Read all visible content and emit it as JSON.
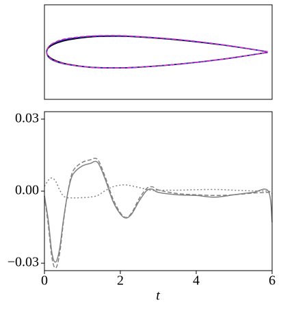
{
  "chart_data": [
    {
      "type": "outline",
      "xlim": [
        -0.01,
        1.02
      ],
      "ylim": [
        -0.3,
        0.3
      ],
      "series": [
        {
          "color": "#000000",
          "style": "solid",
          "x": [
            1,
            0.8,
            0.6,
            0.4,
            0.3,
            0.2,
            0.1,
            0.05,
            0.0125,
            0,
            0.0125,
            0.05,
            0.1,
            0.2,
            0.3,
            0.4,
            0.6,
            0.8,
            1
          ],
          "y": [
            0.002,
            0.044,
            0.076,
            0.097,
            0.1,
            0.096,
            0.078,
            0.059,
            0.032,
            0,
            -0.032,
            -0.059,
            -0.078,
            -0.096,
            -0.1,
            -0.097,
            -0.076,
            -0.044,
            -0.002
          ]
        },
        {
          "color": "#1f1fd6",
          "style": "solid",
          "x": [
            1,
            0.8,
            0.6,
            0.4,
            0.3,
            0.2,
            0.1,
            0.05,
            0.0125,
            0,
            0.0125,
            0.05,
            0.1,
            0.2,
            0.3,
            0.4,
            0.6,
            0.8,
            1
          ],
          "y": [
            0.002,
            0.045,
            0.078,
            0.099,
            0.103,
            0.1,
            0.084,
            0.066,
            0.038,
            0,
            -0.038,
            -0.064,
            -0.08,
            -0.097,
            -0.101,
            -0.098,
            -0.077,
            -0.045,
            -0.002
          ]
        },
        {
          "color": "#d62fb0",
          "style": "dashed",
          "x": [
            1,
            0.8,
            0.6,
            0.4,
            0.3,
            0.2,
            0.1,
            0.05,
            0.0125,
            0,
            0.0125,
            0.05,
            0.1,
            0.2,
            0.3,
            0.4,
            0.6,
            0.8,
            1
          ],
          "y": [
            0.002,
            0.046,
            0.079,
            0.1,
            0.105,
            0.102,
            0.088,
            0.07,
            0.04,
            0,
            -0.036,
            -0.062,
            -0.079,
            -0.097,
            -0.1,
            -0.097,
            -0.076,
            -0.044,
            -0.002
          ]
        }
      ]
    },
    {
      "type": "line",
      "xlabel": "t",
      "xlim": [
        0,
        6
      ],
      "ylim": [
        -0.0331,
        0.0331
      ],
      "xticks": [
        0,
        2,
        4,
        6
      ],
      "yticks": [
        {
          "value": 0.03,
          "label": "0.03"
        },
        {
          "value": 0,
          "label": "0.00"
        },
        {
          "value": -0.03,
          "label": "−0.03"
        }
      ],
      "x": [
        0,
        0.1,
        0.2,
        0.3,
        0.4,
        0.5,
        0.6,
        0.7,
        0.8,
        1.0,
        1.2,
        1.4,
        1.6,
        1.8,
        2.0,
        2.15,
        2.3,
        2.5,
        2.7,
        2.85,
        3.0,
        3.5,
        4.0,
        4.5,
        5.0,
        5.5,
        5.9,
        6.0
      ],
      "series": [
        {
          "color": "#808080",
          "style": "solid",
          "values": [
            -0.002,
            -0.012,
            -0.026,
            -0.0295,
            -0.024,
            -0.012,
            -0.002,
            0.005,
            0.008,
            0.0105,
            0.0115,
            0.012,
            0.005,
            -0.004,
            -0.0095,
            -0.0112,
            -0.0095,
            -0.004,
            0.0003,
            0.0008,
            -0.0005,
            -0.0015,
            -0.0018,
            -0.0025,
            -0.0015,
            -0.0005,
            0,
            -0.013
          ]
        },
        {
          "color": "#808080",
          "style": "dashed",
          "values": [
            -0.002,
            -0.014,
            -0.028,
            -0.032,
            -0.026,
            -0.013,
            -0.002,
            0.006,
            0.0095,
            0.012,
            0.013,
            0.0132,
            0.006,
            -0.003,
            -0.009,
            -0.011,
            -0.009,
            -0.003,
            0.0012,
            0.0018,
            0.0005,
            -0.001,
            -0.0015,
            -0.0018,
            -0.0015,
            -0.0008,
            -0.0005,
            -0.0005
          ]
        },
        {
          "color": "#808080",
          "style": "dotted",
          "values": [
            0.002,
            0.0045,
            0.0055,
            0.004,
            0.0005,
            -0.002,
            -0.0027,
            -0.0028,
            -0.0028,
            -0.0027,
            -0.0025,
            -0.0018,
            0.0002,
            0.0018,
            0.0025,
            0.0026,
            0.0022,
            0.0015,
            0.0007,
            0.0003,
            0.0004,
            0.0004,
            0.0006,
            0.0007,
            0.0004,
            0.0001,
            0,
            -0.001
          ]
        }
      ]
    }
  ]
}
